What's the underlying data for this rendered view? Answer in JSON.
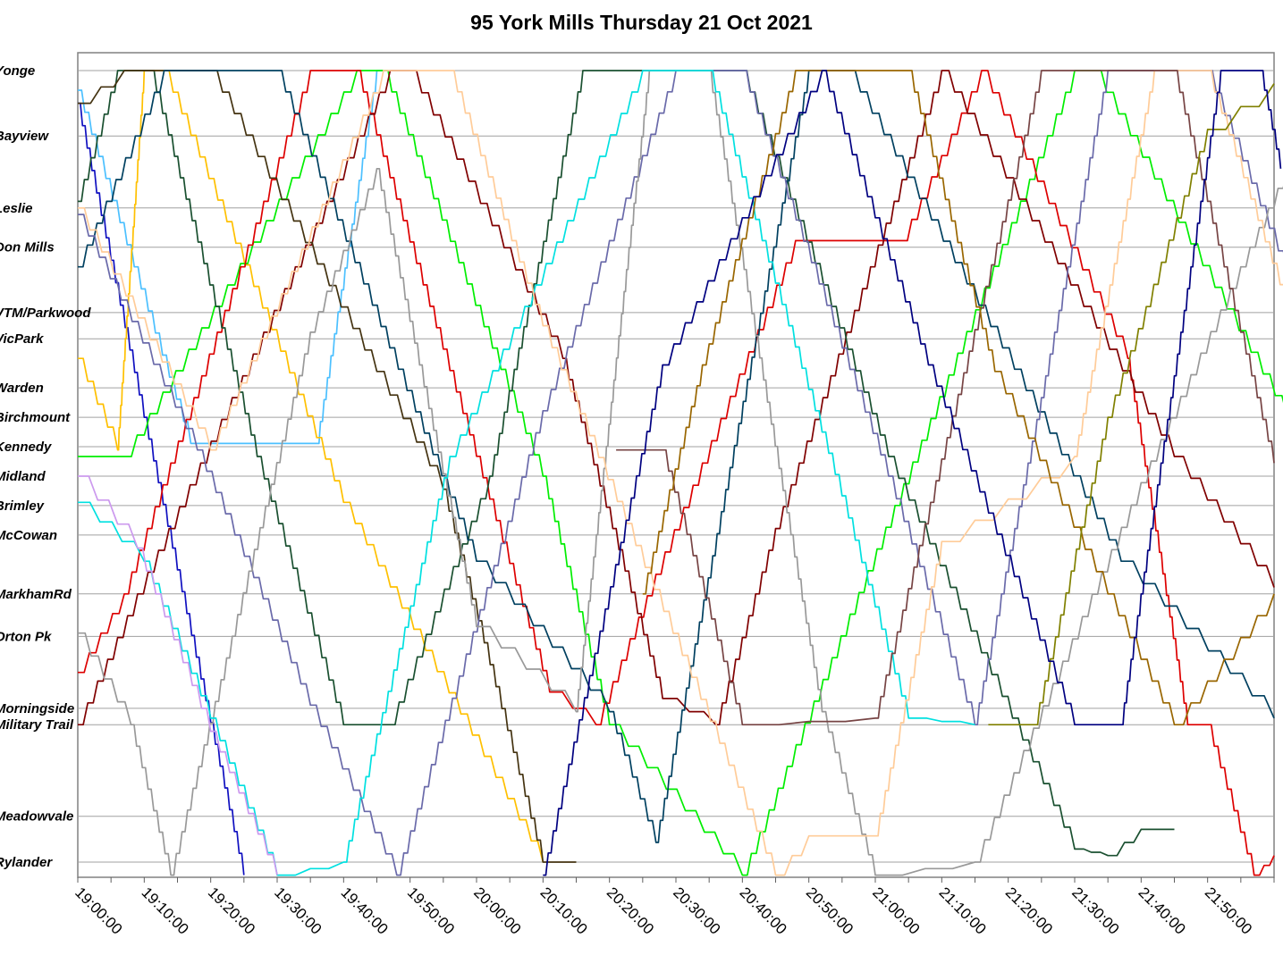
{
  "chart_data": {
    "type": "line",
    "title": "95 York Mills Thursday 21 Oct 2021",
    "xlabel": "",
    "ylabel": "",
    "x_unit": "minutes after 19:00:00",
    "xlim": [
      0,
      180
    ],
    "x_ticks": [
      "19:00:00",
      "19:10:00",
      "19:20:00",
      "19:30:00",
      "19:40:00",
      "19:50:00",
      "20:00:00",
      "20:10:00",
      "20:20:00",
      "20:30:00",
      "20:40:00",
      "20:50:00",
      "21:00:00",
      "21:10:00",
      "21:20:00",
      "21:30:00",
      "21:40:00",
      "21:50:00"
    ],
    "grid": "horizontal lines at stops",
    "stops": [
      {
        "name": "Yonge",
        "pos": 0
      },
      {
        "name": "Bayview",
        "pos": 1.0
      },
      {
        "name": "Leslie",
        "pos": 2.1
      },
      {
        "name": "Don Mills",
        "pos": 2.7
      },
      {
        "name": "VTM/Parkwood",
        "pos": 3.7
      },
      {
        "name": "VicPark",
        "pos": 4.1
      },
      {
        "name": "Warden",
        "pos": 4.85
      },
      {
        "name": "Birchmount",
        "pos": 5.3
      },
      {
        "name": "Kennedy",
        "pos": 5.75
      },
      {
        "name": "Midland",
        "pos": 6.2
      },
      {
        "name": "Brimley",
        "pos": 6.65
      },
      {
        "name": "McCowan",
        "pos": 7.1
      },
      {
        "name": "MarkhamRd",
        "pos": 8.0
      },
      {
        "name": "Orton Pk",
        "pos": 8.65
      },
      {
        "name": "Morningside",
        "pos": 9.75
      },
      {
        "name": "Military Trail",
        "pos": 10.0
      },
      {
        "name": "Meadowvale",
        "pos": 11.4
      },
      {
        "name": "Rylander",
        "pos": 12.1
      }
    ],
    "y_max": 12.3,
    "series": [
      {
        "color": "#1010c0",
        "values": [
          [
            0,
            0.5
          ],
          [
            10,
            5.3
          ],
          [
            25,
            12.3
          ]
        ]
      },
      {
        "color": "#4cc0ff",
        "values": [
          [
            0,
            0.3
          ],
          [
            17,
            5.7
          ],
          [
            36,
            5.7
          ],
          [
            45,
            0
          ],
          [
            50,
            0
          ]
        ]
      },
      {
        "color": "#ffc000",
        "values": [
          [
            0,
            4.4
          ],
          [
            6,
            5.8
          ],
          [
            10,
            0
          ],
          [
            13,
            0
          ],
          [
            40,
            6.6
          ],
          [
            70,
            12.1
          ]
        ]
      },
      {
        "color": "#00ee00",
        "values": [
          [
            0,
            5.9
          ],
          [
            7,
            5.9
          ],
          [
            42,
            0
          ],
          [
            46,
            0
          ],
          [
            70,
            6.2
          ],
          [
            80,
            10.0
          ],
          [
            100,
            12.3
          ],
          [
            150,
            0
          ],
          [
            153,
            0
          ],
          [
            182,
            5.3
          ]
        ]
      },
      {
        "color": "#dd0000",
        "values": [
          [
            0,
            9.2
          ],
          [
            7,
            8.0
          ],
          [
            35,
            0
          ],
          [
            42,
            0
          ],
          [
            71,
            9.5
          ],
          [
            78,
            10.0
          ],
          [
            87,
            7.7
          ],
          [
            108,
            2.6
          ],
          [
            124,
            2.6
          ],
          [
            136,
            0
          ],
          [
            158,
            4.4
          ],
          [
            167,
            10.0
          ],
          [
            170,
            10.0
          ],
          [
            177,
            12.3
          ],
          [
            180,
            12.0
          ]
        ]
      },
      {
        "color": "#800000",
        "values": [
          [
            0,
            10.0
          ],
          [
            9,
            8.0
          ],
          [
            47,
            0
          ],
          [
            50,
            0
          ],
          [
            73,
            4.4
          ],
          [
            88,
            9.6
          ],
          [
            96,
            10.0
          ],
          [
            105,
            7.0
          ],
          [
            130,
            0
          ],
          [
            165,
            5.9
          ],
          [
            180,
            7.9
          ]
        ]
      },
      {
        "color": "#1a5030",
        "values": [
          [
            0,
            2.0
          ],
          [
            6,
            0
          ],
          [
            11,
            0
          ],
          [
            27,
            5.9
          ],
          [
            40,
            10.0
          ],
          [
            47,
            10.0
          ],
          [
            62,
            6.2
          ],
          [
            76,
            0
          ],
          [
            100,
            0
          ],
          [
            122,
            5.9
          ],
          [
            150,
            11.9
          ],
          [
            155,
            12.0
          ],
          [
            160,
            11.6
          ],
          [
            165,
            11.6
          ]
        ]
      },
      {
        "color": "#443311",
        "values": [
          [
            0,
            0.5
          ],
          [
            7,
            0
          ],
          [
            20,
            0
          ],
          [
            45,
            4.6
          ],
          [
            55,
            6.4
          ],
          [
            70,
            12.1
          ],
          [
            75,
            12.1
          ]
        ]
      },
      {
        "color": "#004060",
        "values": [
          [
            0,
            3.0
          ],
          [
            13,
            0
          ],
          [
            30,
            0
          ],
          [
            60,
            7.5
          ],
          [
            80,
            9.8
          ],
          [
            87,
            11.8
          ],
          [
            110,
            0
          ],
          [
            116,
            0
          ],
          [
            157,
            7.5
          ],
          [
            180,
            9.9
          ]
        ]
      },
      {
        "color": "#6a6aaa",
        "values": [
          [
            0,
            2.2
          ],
          [
            18,
            5.8
          ],
          [
            35,
            9.7
          ],
          [
            48,
            12.3
          ],
          [
            70,
            5.2
          ],
          [
            90,
            0
          ],
          [
            100,
            0
          ],
          [
            122,
            6.2
          ],
          [
            135,
            10.0
          ],
          [
            155,
            0
          ],
          [
            170,
            0
          ],
          [
            182,
            3.1
          ]
        ]
      },
      {
        "color": "#999999",
        "values": [
          [
            0,
            8.6
          ],
          [
            8,
            10.0
          ],
          [
            14,
            12.3
          ],
          [
            35,
            4.0
          ],
          [
            45,
            1.5
          ],
          [
            60,
            8.5
          ],
          [
            75,
            9.8
          ],
          [
            86,
            0
          ],
          [
            95,
            0
          ],
          [
            112,
            9.8
          ],
          [
            120,
            12.3
          ],
          [
            135,
            12.1
          ],
          [
            160,
            6.3
          ],
          [
            175,
            3.0
          ],
          [
            182,
            1.5
          ]
        ]
      },
      {
        "color": "#00e0e0",
        "values": [
          [
            0,
            6.6
          ],
          [
            10,
            7.5
          ],
          [
            30,
            12.3
          ],
          [
            40,
            12.1
          ],
          [
            56,
            5.9
          ],
          [
            85,
            0
          ],
          [
            95,
            0
          ],
          [
            115,
            6.5
          ],
          [
            125,
            9.9
          ],
          [
            135,
            10.0
          ]
        ]
      },
      {
        "color": "#cc99ee",
        "values": [
          [
            0,
            6.2
          ],
          [
            9,
            7.3
          ],
          [
            20,
            10.1
          ],
          [
            30,
            12.3
          ]
        ]
      },
      {
        "color": "#ffcc99",
        "values": [
          [
            0,
            2.1
          ],
          [
            20,
            5.8
          ],
          [
            46,
            0
          ],
          [
            56,
            0
          ],
          [
            70,
            3.9
          ],
          [
            105,
            12.3
          ],
          [
            110,
            11.7
          ],
          [
            120,
            11.7
          ],
          [
            130,
            7.2
          ],
          [
            150,
            5.9
          ],
          [
            162,
            0
          ],
          [
            170,
            0
          ],
          [
            182,
            3.6
          ]
        ]
      },
      {
        "color": "#774444",
        "values": [
          [
            81,
            5.8
          ],
          [
            88,
            5.8
          ],
          [
            100,
            10.0
          ],
          [
            120,
            9.9
          ],
          [
            145,
            0
          ],
          [
            165,
            0
          ],
          [
            180,
            6.0
          ]
        ]
      },
      {
        "color": "#996600",
        "values": [
          [
            85,
            8.0
          ],
          [
            94,
            4.5
          ],
          [
            108,
            0
          ],
          [
            125,
            0
          ],
          [
            138,
            4.6
          ],
          [
            155,
            8.0
          ],
          [
            165,
            10.0
          ],
          [
            180,
            8.0
          ]
        ]
      },
      {
        "color": "#808000",
        "values": [
          [
            137,
            10.0
          ],
          [
            144,
            10.0
          ],
          [
            155,
            5.3
          ],
          [
            170,
            0.9
          ],
          [
            180,
            0.2
          ]
        ]
      },
      {
        "color": "#000080",
        "values": [
          [
            70,
            12.3
          ],
          [
            88,
            4.5
          ],
          [
            112,
            0
          ],
          [
            128,
            4.5
          ],
          [
            150,
            10.0
          ],
          [
            157,
            10.0
          ],
          [
            172,
            0
          ],
          [
            178,
            0
          ],
          [
            181,
            1.5
          ]
        ]
      }
    ]
  }
}
